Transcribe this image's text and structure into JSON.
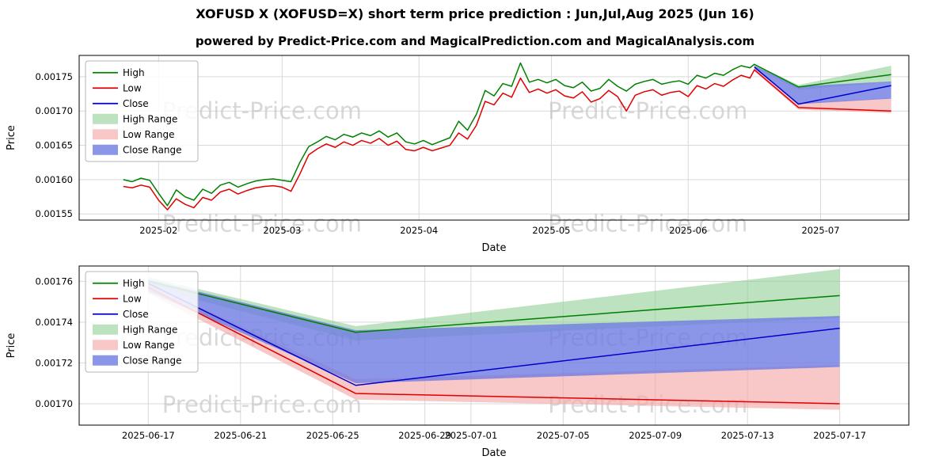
{
  "page": {
    "title": "XOFUSD X (XOFUSD=X) short term price prediction : Jun,Jul,Aug 2025 (Jun 16)",
    "subtitle": "powered by Predict-Price.com and MagicalPrediction.com and MagicalAnalysis.com",
    "watermark_text": "Predict-Price.com",
    "background": "#ffffff"
  },
  "colors": {
    "high_line": "#008000",
    "low_line": "#e00000",
    "close_line": "#0000cc",
    "high_range": "#90cf94",
    "low_range": "#f4a9a9",
    "close_range": "#6f7ce3",
    "grid": "#d9d9d9",
    "watermark": "#bfbfbf"
  },
  "chart_data": [
    {
      "type": "line",
      "title": "",
      "xlabel": "Date",
      "ylabel": "Price",
      "x_range": [
        "2025-01-14",
        "2025-07-21"
      ],
      "y_range": [
        0.001541,
        0.001781
      ],
      "yticks": [
        0.00155,
        0.0016,
        0.00165,
        0.0017,
        0.00175
      ],
      "xticks": [
        {
          "date": "2025-02-01",
          "label": "2025-02"
        },
        {
          "date": "2025-03-01",
          "label": "2025-03"
        },
        {
          "date": "2025-04-01",
          "label": "2025-04"
        },
        {
          "date": "2025-05-01",
          "label": "2025-05"
        },
        {
          "date": "2025-06-01",
          "label": "2025-06"
        },
        {
          "date": "2025-07-01",
          "label": "2025-07"
        }
      ],
      "x": [
        "2025-01-24",
        "2025-01-26",
        "2025-01-28",
        "2025-01-30",
        "2025-02-01",
        "2025-02-03",
        "2025-02-05",
        "2025-02-07",
        "2025-02-09",
        "2025-02-11",
        "2025-02-13",
        "2025-02-15",
        "2025-02-17",
        "2025-02-19",
        "2025-02-21",
        "2025-02-23",
        "2025-02-25",
        "2025-02-27",
        "2025-03-01",
        "2025-03-03",
        "2025-03-05",
        "2025-03-07",
        "2025-03-09",
        "2025-03-11",
        "2025-03-13",
        "2025-03-15",
        "2025-03-17",
        "2025-03-19",
        "2025-03-21",
        "2025-03-23",
        "2025-03-25",
        "2025-03-27",
        "2025-03-29",
        "2025-03-31",
        "2025-04-02",
        "2025-04-04",
        "2025-04-06",
        "2025-04-08",
        "2025-04-10",
        "2025-04-12",
        "2025-04-14",
        "2025-04-16",
        "2025-04-18",
        "2025-04-20",
        "2025-04-22",
        "2025-04-24",
        "2025-04-26",
        "2025-04-28",
        "2025-04-30",
        "2025-05-02",
        "2025-05-04",
        "2025-05-06",
        "2025-05-08",
        "2025-05-10",
        "2025-05-12",
        "2025-05-14",
        "2025-05-16",
        "2025-05-18",
        "2025-05-20",
        "2025-05-22",
        "2025-05-24",
        "2025-05-26",
        "2025-05-28",
        "2025-05-30",
        "2025-06-01",
        "2025-06-03",
        "2025-06-05",
        "2025-06-07",
        "2025-06-09",
        "2025-06-11",
        "2025-06-13",
        "2025-06-15",
        "2025-06-16",
        "2025-06-26",
        "2025-07-17"
      ],
      "series": [
        {
          "name": "High",
          "color": "#008000",
          "values": [
            0.0016,
            0.001597,
            0.001602,
            0.001599,
            0.00158,
            0.001562,
            0.001585,
            0.001575,
            0.00157,
            0.001586,
            0.00158,
            0.001592,
            0.001596,
            0.001589,
            0.001594,
            0.001598,
            0.0016,
            0.001601,
            0.001599,
            0.001597,
            0.001625,
            0.001648,
            0.001655,
            0.001663,
            0.001658,
            0.001666,
            0.001662,
            0.001668,
            0.001664,
            0.001671,
            0.001662,
            0.001668,
            0.001655,
            0.001652,
            0.001657,
            0.001651,
            0.001656,
            0.001661,
            0.001685,
            0.001672,
            0.001695,
            0.00173,
            0.001722,
            0.00174,
            0.001736,
            0.00177,
            0.001742,
            0.001746,
            0.001741,
            0.001746,
            0.001737,
            0.001734,
            0.001742,
            0.001729,
            0.001733,
            0.001746,
            0.001736,
            0.001729,
            0.001739,
            0.001743,
            0.001746,
            0.001739,
            0.001742,
            0.001744,
            0.001739,
            0.001752,
            0.001748,
            0.001755,
            0.001752,
            0.00176,
            0.001766,
            0.001763,
            0.001768,
            0.001735,
            0.001753
          ]
        },
        {
          "name": "Low",
          "color": "#e00000",
          "values": [
            0.00159,
            0.001588,
            0.001592,
            0.001589,
            0.00157,
            0.001556,
            0.001572,
            0.001564,
            0.001559,
            0.001574,
            0.00157,
            0.001582,
            0.001586,
            0.001579,
            0.001584,
            0.001588,
            0.00159,
            0.001591,
            0.001589,
            0.001583,
            0.001608,
            0.001636,
            0.001645,
            0.001652,
            0.001647,
            0.001655,
            0.00165,
            0.001657,
            0.001653,
            0.00166,
            0.00165,
            0.001656,
            0.001644,
            0.001642,
            0.001647,
            0.001642,
            0.001646,
            0.00165,
            0.001668,
            0.001659,
            0.001679,
            0.001714,
            0.001709,
            0.001726,
            0.00172,
            0.001748,
            0.001727,
            0.001732,
            0.001726,
            0.001731,
            0.001722,
            0.001719,
            0.001728,
            0.001713,
            0.001718,
            0.00173,
            0.001721,
            0.0017,
            0.001723,
            0.001728,
            0.001731,
            0.001723,
            0.001727,
            0.001729,
            0.001721,
            0.001737,
            0.001732,
            0.00174,
            0.001736,
            0.001745,
            0.001752,
            0.001748,
            0.00176,
            0.001705,
            0.0017
          ]
        },
        {
          "name": "Close",
          "color": "#0000cc",
          "x": [
            "2025-06-16",
            "2025-06-26",
            "2025-07-17"
          ],
          "values": [
            0.001764,
            0.00171,
            0.001737
          ]
        }
      ],
      "bands": [
        {
          "name": "High Range",
          "color": "#90cf94",
          "opacity": 0.6,
          "x": [
            "2025-06-16",
            "2025-06-26",
            "2025-07-17"
          ],
          "upper": [
            0.001768,
            0.001738,
            0.001766
          ],
          "lower": [
            0.001764,
            0.001731,
            0.001742
          ]
        },
        {
          "name": "Low Range",
          "color": "#f4a9a9",
          "opacity": 0.65,
          "x": [
            "2025-06-16",
            "2025-06-26",
            "2025-07-17"
          ],
          "upper": [
            0.001762,
            0.001712,
            0.001719
          ],
          "lower": [
            0.001758,
            0.001702,
            0.001697
          ]
        },
        {
          "name": "Close Range",
          "color": "#6f7ce3",
          "opacity": 0.8,
          "x": [
            "2025-06-16",
            "2025-06-26",
            "2025-07-17"
          ],
          "upper": [
            0.001766,
            0.001736,
            0.001743
          ],
          "lower": [
            0.001762,
            0.00171,
            0.001718
          ]
        }
      ],
      "legend": [
        {
          "label": "High",
          "kind": "line",
          "color": "#008000"
        },
        {
          "label": "Low",
          "kind": "line",
          "color": "#e00000"
        },
        {
          "label": "Close",
          "kind": "line",
          "color": "#0000cc"
        },
        {
          "label": "High Range",
          "kind": "band",
          "color": "#90cf94",
          "opacity": 0.6
        },
        {
          "label": "Low Range",
          "kind": "band",
          "color": "#f4a9a9",
          "opacity": 0.65
        },
        {
          "label": "Close Range",
          "kind": "band",
          "color": "#6f7ce3",
          "opacity": 0.8
        }
      ],
      "legend_position": "upper-left",
      "grid": true
    },
    {
      "type": "line",
      "title": "",
      "xlabel": "Date",
      "ylabel": "Price",
      "x_range": [
        "2025-06-14",
        "2025-07-20"
      ],
      "y_range": [
        0.0016895,
        0.0017675
      ],
      "yticks": [
        0.0017,
        0.00172,
        0.00174,
        0.00176
      ],
      "xticks": [
        {
          "date": "2025-06-17",
          "label": "2025-06-17"
        },
        {
          "date": "2025-06-21",
          "label": "2025-06-21"
        },
        {
          "date": "2025-06-25",
          "label": "2025-06-25"
        },
        {
          "date": "2025-06-29",
          "label": "2025-06-29"
        },
        {
          "date": "2025-07-01",
          "label": "2025-07-01"
        },
        {
          "date": "2025-07-05",
          "label": "2025-07-05"
        },
        {
          "date": "2025-07-09",
          "label": "2025-07-09"
        },
        {
          "date": "2025-07-13",
          "label": "2025-07-13"
        },
        {
          "date": "2025-07-17",
          "label": "2025-07-17"
        }
      ],
      "x": [
        "2025-06-17",
        "2025-06-26",
        "2025-07-17"
      ],
      "series": [
        {
          "name": "High",
          "color": "#008000",
          "values": [
            0.00176,
            0.001735,
            0.001753
          ]
        },
        {
          "name": "Low",
          "color": "#e00000",
          "values": [
            0.001757,
            0.001705,
            0.0017
          ]
        },
        {
          "name": "Close",
          "color": "#0000cc",
          "values": [
            0.001759,
            0.001709,
            0.001737
          ]
        }
      ],
      "bands": [
        {
          "name": "High Range",
          "color": "#90cf94",
          "opacity": 0.6,
          "upper": [
            0.001762,
            0.001738,
            0.001766
          ],
          "lower": [
            0.001757,
            0.001731,
            0.001742
          ]
        },
        {
          "name": "Low Range",
          "color": "#f4a9a9",
          "opacity": 0.65,
          "upper": [
            0.001759,
            0.001712,
            0.001719
          ],
          "lower": [
            0.001754,
            0.001702,
            0.001697
          ]
        },
        {
          "name": "Close Range",
          "color": "#6f7ce3",
          "opacity": 0.8,
          "upper": [
            0.001761,
            0.001736,
            0.001743
          ],
          "lower": [
            0.001755,
            0.00171,
            0.001718
          ]
        }
      ],
      "legend": [
        {
          "label": "High",
          "kind": "line",
          "color": "#008000"
        },
        {
          "label": "Low",
          "kind": "line",
          "color": "#e00000"
        },
        {
          "label": "Close",
          "kind": "line",
          "color": "#0000cc"
        },
        {
          "label": "High Range",
          "kind": "band",
          "color": "#90cf94",
          "opacity": 0.6
        },
        {
          "label": "Low Range",
          "kind": "band",
          "color": "#f4a9a9",
          "opacity": 0.65
        },
        {
          "label": "Close Range",
          "kind": "band",
          "color": "#6f7ce3",
          "opacity": 0.8
        }
      ],
      "legend_position": "upper-left",
      "grid": true
    }
  ]
}
